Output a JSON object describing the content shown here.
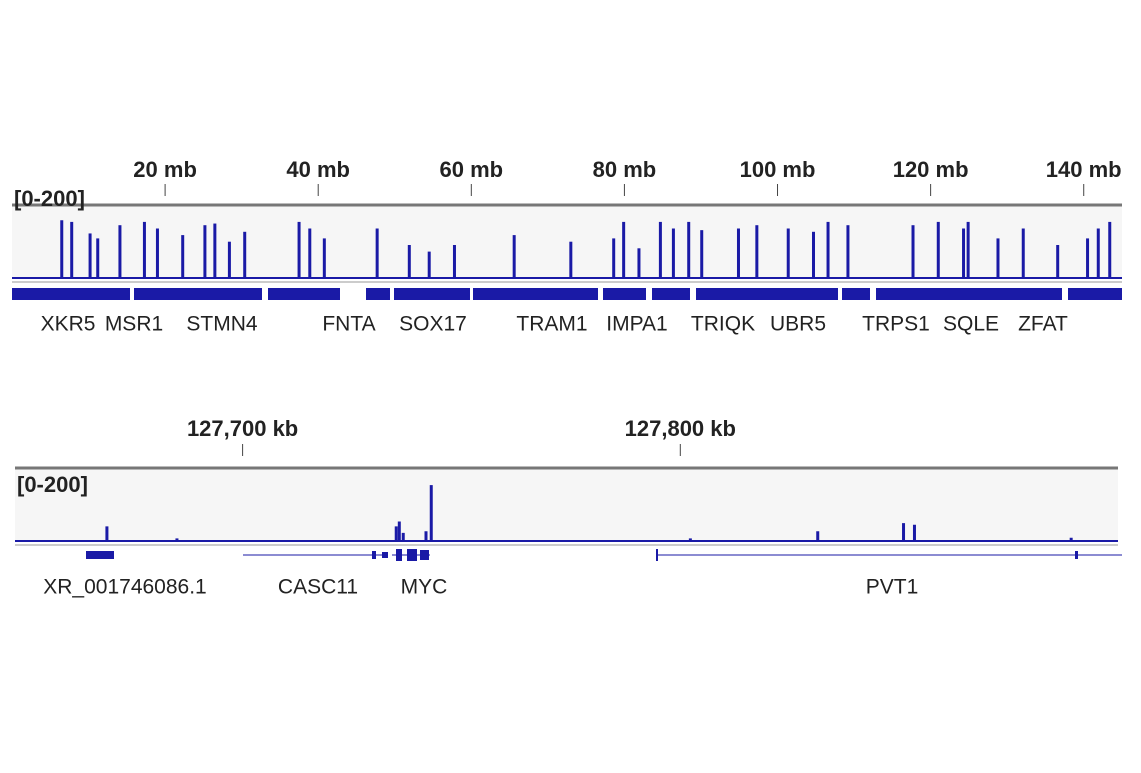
{
  "chart_data": [
    {
      "type": "coverage",
      "range_label": "[0-200]",
      "ylim": [
        0,
        200
      ],
      "xlim": [
        0,
        145
      ],
      "color": "#1a1aa6",
      "xticks": [
        {
          "value": 20,
          "label": "20 mb"
        },
        {
          "value": 40,
          "label": "40 mb"
        },
        {
          "value": 60,
          "label": "60 mb"
        },
        {
          "value": 80,
          "label": "80 mb"
        },
        {
          "value": 100,
          "label": "100 mb"
        },
        {
          "value": 120,
          "label": "120 mb"
        },
        {
          "value": 140,
          "label": "140 mb"
        }
      ],
      "x": [
        6.5,
        7.8,
        10.2,
        11.2,
        14.1,
        17.3,
        19.0,
        22.3,
        25.2,
        26.5,
        28.4,
        30.4,
        37.5,
        38.9,
        40.8,
        47.7,
        51.9,
        54.5,
        57.8,
        65.6,
        73.0,
        78.6,
        79.9,
        81.9,
        84.7,
        86.4,
        88.4,
        90.1,
        94.9,
        97.3,
        101.4,
        104.7,
        106.6,
        109.2,
        117.7,
        121.0,
        124.3,
        124.9,
        128.8,
        132.1,
        136.6,
        140.5,
        141.9,
        143.4
      ],
      "values": [
        175,
        170,
        135,
        120,
        160,
        170,
        150,
        130,
        160,
        165,
        110,
        140,
        170,
        150,
        120,
        150,
        100,
        80,
        100,
        130,
        110,
        120,
        170,
        90,
        170,
        150,
        170,
        145,
        150,
        160,
        150,
        140,
        170,
        160,
        160,
        170,
        150,
        170,
        120,
        150,
        100,
        120,
        150,
        170
      ],
      "genes": [
        "XKR5",
        "MSR1",
        "STMN4",
        "FNTA",
        "SOX17",
        "TRAM1",
        "IMPA1",
        "TRIQK",
        "UBR5",
        "TRPS1",
        "SQLE",
        "ZFAT"
      ]
    },
    {
      "type": "coverage",
      "range_label": "[0-200]",
      "ylim": [
        0,
        200
      ],
      "xlim": [
        127648,
        127900
      ],
      "color": "#1a1aa6",
      "xticks": [
        {
          "value": 127700,
          "label": "127,700 kb"
        },
        {
          "value": 127800,
          "label": "127,800 kb"
        }
      ],
      "x": [
        127669.0,
        127685.0,
        127735.1,
        127735.8,
        127736.7,
        127741.9,
        127743.1,
        127802.3,
        127831.4,
        127851.0,
        127853.5,
        127889.3
      ],
      "values": [
        45,
        8,
        45,
        60,
        25,
        30,
        172,
        8,
        30,
        55,
        50,
        10
      ],
      "genes": [
        "XR_001746086.1",
        "CASC11",
        "MYC",
        "PVT1"
      ]
    }
  ]
}
